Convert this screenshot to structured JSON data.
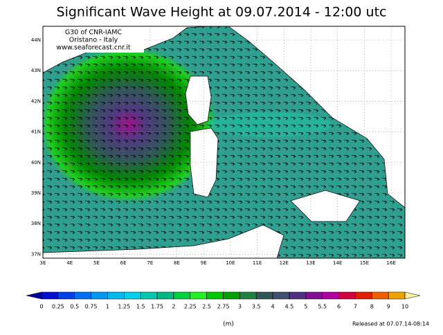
{
  "title": "Significant Wave Height at 09.07.2014 - 12:00 utc",
  "credits": [
    "G30 of CNR-IAMC",
    "Oristano - Italy",
    "www.seaforecast.cnr.it"
  ],
  "map": {
    "lat_labels": [
      "44N",
      "43N",
      "42N",
      "41N",
      "40N",
      "39N",
      "38N",
      "37N"
    ],
    "lon_labels": [
      "3E",
      "4E",
      "5E",
      "6E",
      "7E",
      "8E",
      "9E",
      "10E",
      "11E",
      "12E",
      "13E",
      "14E",
      "15E",
      "16E"
    ]
  },
  "colorbar": {
    "ticks": [
      0,
      0.25,
      0.5,
      0.75,
      1,
      1.25,
      1.5,
      1.75,
      2,
      2.25,
      2.5,
      2.75,
      3,
      3.5,
      4,
      4.5,
      5,
      5.5,
      6,
      7,
      8,
      9,
      10
    ],
    "colors": [
      "#0000a0",
      "#0010d0",
      "#0040e8",
      "#0070f0",
      "#0098f0",
      "#00b8f0",
      "#00d0e8",
      "#00c8b0",
      "#00b880",
      "#00d040",
      "#20f020",
      "#00c800",
      "#00a000",
      "#208040",
      "#305858",
      "#405070",
      "#503080",
      "#801090",
      "#b000a0",
      "#d00040",
      "#e02000",
      "#f06000",
      "#f0a000",
      "#f8f0a0"
    ]
  },
  "unit": "(m)",
  "released": "Released at 07.07.14-08:14"
}
